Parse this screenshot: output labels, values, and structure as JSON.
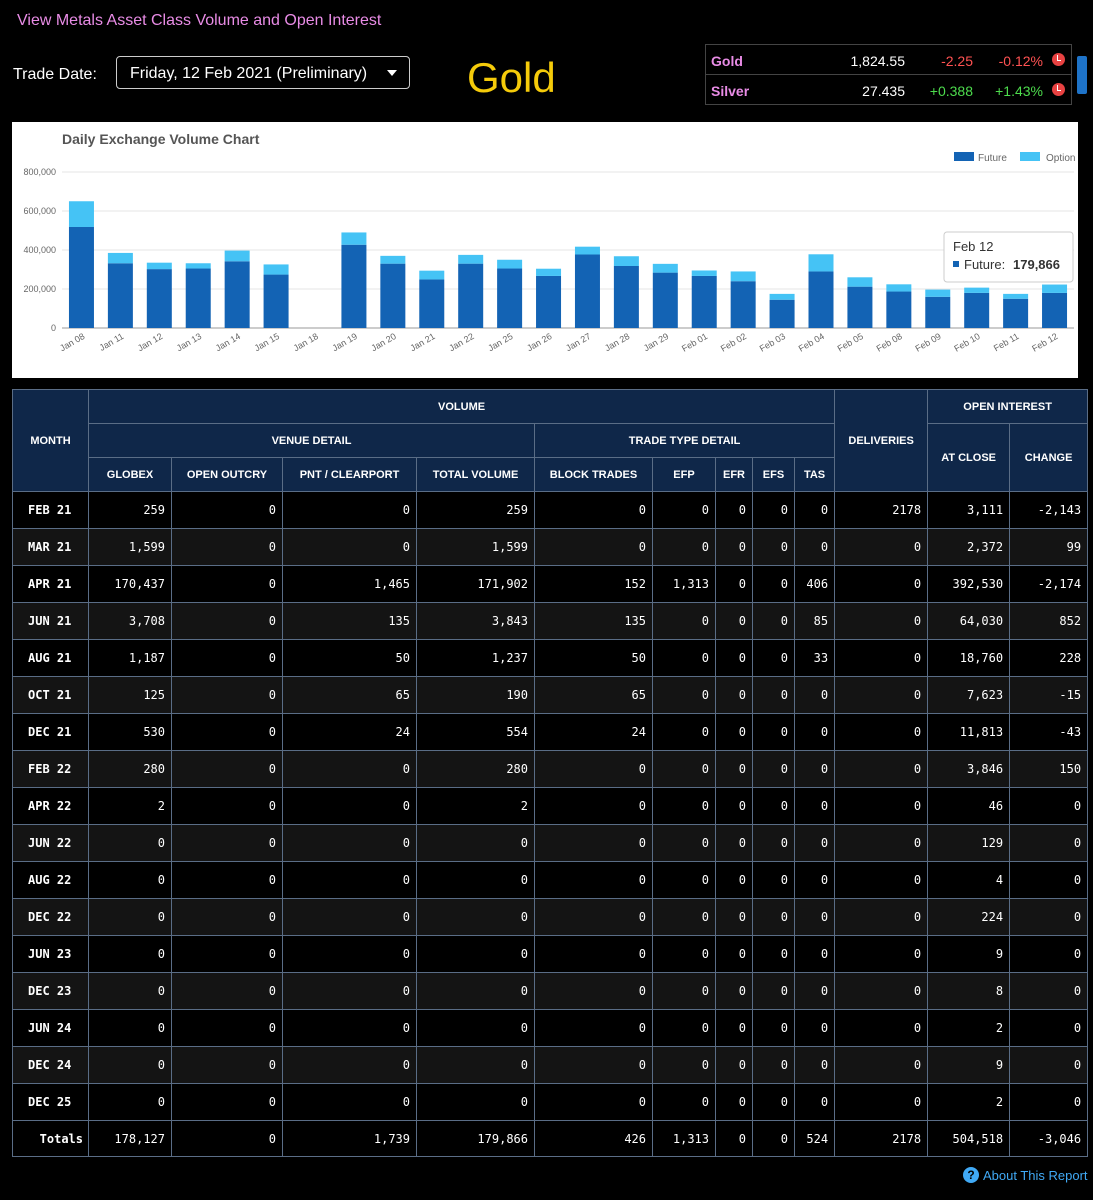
{
  "header": {
    "link": "View Metals Asset Class Volume and Open Interest",
    "trade_date_label": "Trade Date:",
    "trade_date_value": "Friday, 12 Feb 2021 (Preliminary)",
    "product_title": "Gold"
  },
  "ticker": [
    {
      "name": "Gold",
      "price": "1,824.55",
      "change": "-2.25",
      "pct": "-0.12%"
    },
    {
      "name": "Silver",
      "price": "27.435",
      "change": "+0.388",
      "pct": "+1.43%"
    }
  ],
  "colors": {
    "future": "#1363b4",
    "option": "#45c3f5",
    "link": "#e98ce6",
    "title": "#f5cb0a"
  },
  "chart_data": {
    "type": "bar",
    "stacked": true,
    "title": "Daily Exchange Volume Chart",
    "categories": [
      "Jan 08",
      "Jan 11",
      "Jan 12",
      "Jan 13",
      "Jan 14",
      "Jan 15",
      "Jan 18",
      "Jan 19",
      "Jan 20",
      "Jan 21",
      "Jan 22",
      "Jan 25",
      "Jan 26",
      "Jan 27",
      "Jan 28",
      "Jan 29",
      "Feb 01",
      "Feb 02",
      "Feb 03",
      "Feb 04",
      "Feb 05",
      "Feb 08",
      "Feb 09",
      "Feb 10",
      "Feb 11",
      "Feb 12"
    ],
    "series": [
      {
        "name": "Future",
        "values": [
          518000,
          332000,
          302000,
          305000,
          342000,
          274000,
          0,
          427000,
          330000,
          249000,
          330000,
          305000,
          267000,
          377000,
          318000,
          284000,
          267000,
          240000,
          145000,
          290000,
          212000,
          187000,
          160000,
          180000,
          150000,
          179866
        ]
      },
      {
        "name": "Option",
        "values": [
          132000,
          53000,
          33000,
          27000,
          55000,
          52000,
          0,
          63000,
          40000,
          45000,
          45000,
          45000,
          37000,
          40000,
          50000,
          45000,
          28000,
          50000,
          30000,
          88000,
          48000,
          37000,
          37000,
          27000,
          25000,
          43000
        ]
      }
    ],
    "yticks": [
      "0",
      "200,000",
      "400,000",
      "600,000",
      "800,000"
    ],
    "ylim": [
      0,
      800000
    ],
    "legend": "top-right",
    "tooltip": {
      "title": "Feb 12",
      "label": "Future:",
      "value": "179,866"
    }
  },
  "table": {
    "headers": {
      "month": "MONTH",
      "volume": "VOLUME",
      "venue": "VENUE DETAIL",
      "trade_type": "TRADE TYPE DETAIL",
      "deliveries": "DELIVERIES",
      "open_interest": "OPEN INTEREST",
      "globex": "GLOBEX",
      "open_outcry": "OPEN OUTCRY",
      "pnt": "PNT / CLEARPORT",
      "total_volume": "TOTAL VOLUME",
      "block_trades": "BLOCK TRADES",
      "efp": "EFP",
      "efr": "EFR",
      "efs": "EFS",
      "tas": "TAS",
      "at_close": "AT CLOSE",
      "change": "CHANGE"
    },
    "rows": [
      [
        "FEB 21",
        "259",
        "0",
        "0",
        "259",
        "0",
        "0",
        "0",
        "0",
        "0",
        "2178",
        "3,111",
        "-2,143"
      ],
      [
        "MAR 21",
        "1,599",
        "0",
        "0",
        "1,599",
        "0",
        "0",
        "0",
        "0",
        "0",
        "0",
        "2,372",
        "99"
      ],
      [
        "APR 21",
        "170,437",
        "0",
        "1,465",
        "171,902",
        "152",
        "1,313",
        "0",
        "0",
        "406",
        "0",
        "392,530",
        "-2,174"
      ],
      [
        "JUN 21",
        "3,708",
        "0",
        "135",
        "3,843",
        "135",
        "0",
        "0",
        "0",
        "85",
        "0",
        "64,030",
        "852"
      ],
      [
        "AUG 21",
        "1,187",
        "0",
        "50",
        "1,237",
        "50",
        "0",
        "0",
        "0",
        "33",
        "0",
        "18,760",
        "228"
      ],
      [
        "OCT 21",
        "125",
        "0",
        "65",
        "190",
        "65",
        "0",
        "0",
        "0",
        "0",
        "0",
        "7,623",
        "-15"
      ],
      [
        "DEC 21",
        "530",
        "0",
        "24",
        "554",
        "24",
        "0",
        "0",
        "0",
        "0",
        "0",
        "11,813",
        "-43"
      ],
      [
        "FEB 22",
        "280",
        "0",
        "0",
        "280",
        "0",
        "0",
        "0",
        "0",
        "0",
        "0",
        "3,846",
        "150"
      ],
      [
        "APR 22",
        "2",
        "0",
        "0",
        "2",
        "0",
        "0",
        "0",
        "0",
        "0",
        "0",
        "46",
        "0"
      ],
      [
        "JUN 22",
        "0",
        "0",
        "0",
        "0",
        "0",
        "0",
        "0",
        "0",
        "0",
        "0",
        "129",
        "0"
      ],
      [
        "AUG 22",
        "0",
        "0",
        "0",
        "0",
        "0",
        "0",
        "0",
        "0",
        "0",
        "0",
        "4",
        "0"
      ],
      [
        "DEC 22",
        "0",
        "0",
        "0",
        "0",
        "0",
        "0",
        "0",
        "0",
        "0",
        "0",
        "224",
        "0"
      ],
      [
        "JUN 23",
        "0",
        "0",
        "0",
        "0",
        "0",
        "0",
        "0",
        "0",
        "0",
        "0",
        "9",
        "0"
      ],
      [
        "DEC 23",
        "0",
        "0",
        "0",
        "0",
        "0",
        "0",
        "0",
        "0",
        "0",
        "0",
        "8",
        "0"
      ],
      [
        "JUN 24",
        "0",
        "0",
        "0",
        "0",
        "0",
        "0",
        "0",
        "0",
        "0",
        "0",
        "2",
        "0"
      ],
      [
        "DEC 24",
        "0",
        "0",
        "0",
        "0",
        "0",
        "0",
        "0",
        "0",
        "0",
        "0",
        "9",
        "0"
      ],
      [
        "DEC 25",
        "0",
        "0",
        "0",
        "0",
        "0",
        "0",
        "0",
        "0",
        "0",
        "0",
        "2",
        "0"
      ]
    ],
    "totals": [
      "Totals",
      "178,127",
      "0",
      "1,739",
      "179,866",
      "426",
      "1,313",
      "0",
      "0",
      "524",
      "2178",
      "504,518",
      "-3,046"
    ]
  },
  "footer": {
    "about": "About This Report",
    "help_icon": "?"
  }
}
